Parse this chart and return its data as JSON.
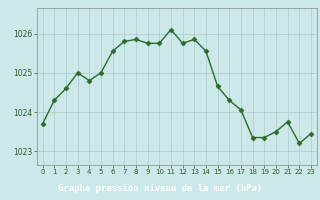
{
  "x": [
    0,
    1,
    2,
    3,
    4,
    5,
    6,
    7,
    8,
    9,
    10,
    11,
    12,
    13,
    14,
    15,
    16,
    17,
    18,
    19,
    20,
    21,
    22,
    23
  ],
  "y": [
    1023.7,
    1024.3,
    1024.6,
    1025.0,
    1024.8,
    1025.0,
    1025.55,
    1025.8,
    1025.85,
    1025.75,
    1025.75,
    1026.1,
    1025.75,
    1025.85,
    1025.55,
    1024.65,
    1024.3,
    1024.05,
    1023.35,
    1023.35,
    1023.5,
    1023.75,
    1023.2,
    1023.45
  ],
  "line_color": "#2d6a2d",
  "marker_color": "#2d6a2d",
  "bg_color": "#cce8e8",
  "grid_color": "#aacccc",
  "xlabel": "Graphe pression niveau de la mer (hPa)",
  "xlabel_color": "#ffffff",
  "xlabel_bg": "#2d6a2d",
  "tick_color": "#2d5a2d",
  "ylim_min": 1022.65,
  "ylim_max": 1026.65,
  "ytick_positions": [
    1023,
    1024,
    1025,
    1026
  ],
  "border_color": "#888888"
}
